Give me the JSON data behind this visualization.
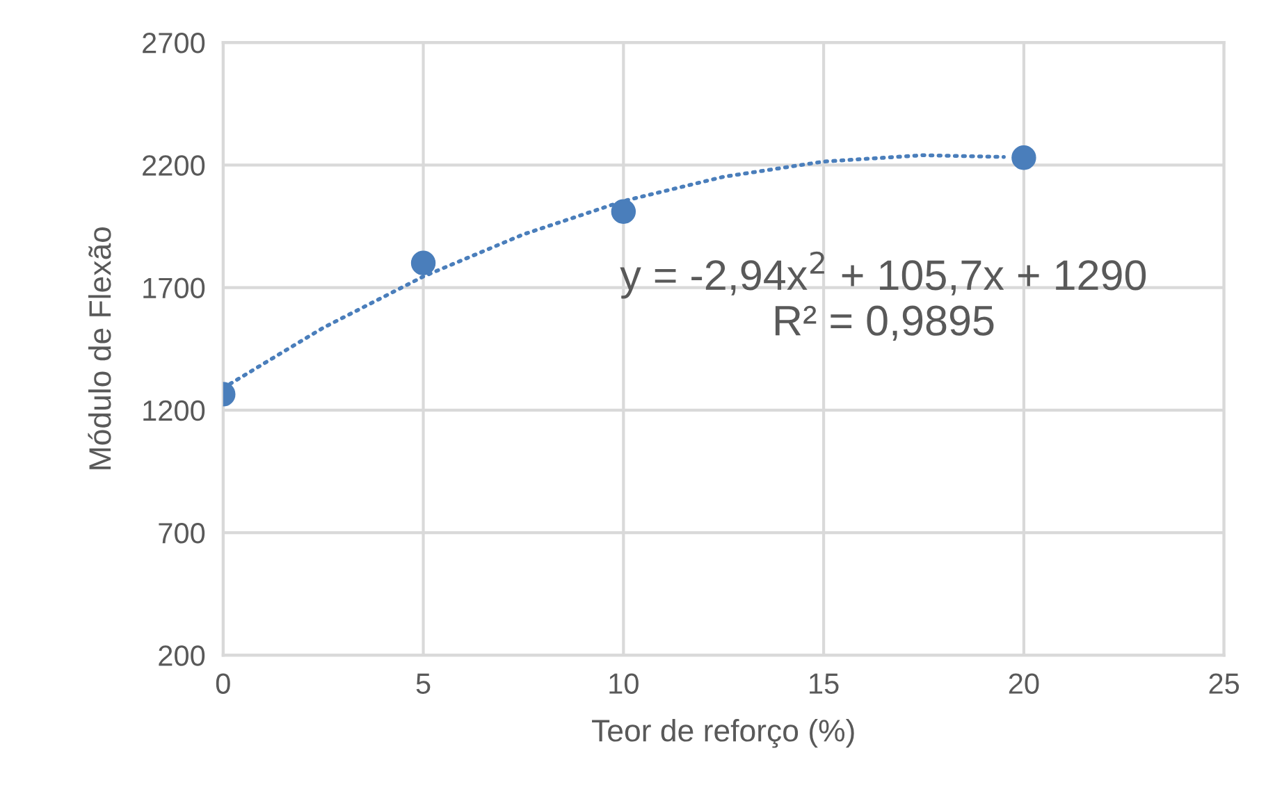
{
  "chart_data": {
    "type": "scatter",
    "xlabel": "Teor de reforço (%)",
    "ylabel": "Módulo de Flexão",
    "xlim": [
      0,
      25
    ],
    "xticks": [
      0,
      5,
      10,
      15,
      20,
      25
    ],
    "ylim": [
      200,
      2700
    ],
    "yticks": [
      200,
      700,
      1200,
      1700,
      2200,
      2700
    ],
    "grid": true,
    "series": [
      {
        "color": "#4a7ebb",
        "marker": "circle",
        "x": [
          0,
          5,
          10,
          20
        ],
        "values": [
          1265,
          1800,
          2010,
          2230
        ]
      },
      {
        "type": "line",
        "color": "#4a7ebb",
        "line_style": "dotted",
        "marker": "none",
        "x": [
          0,
          2.5,
          5,
          7.5,
          10,
          12.5,
          15,
          17.5,
          19.5
        ],
        "values": [
          1290,
          1536,
          1745,
          1917,
          2053,
          2152,
          2214,
          2240,
          2233
        ]
      }
    ],
    "annotations": [
      "y = -2,94x$^{2}$ + 105,7x + 1290",
      "R² = 0,9895"
    ]
  }
}
